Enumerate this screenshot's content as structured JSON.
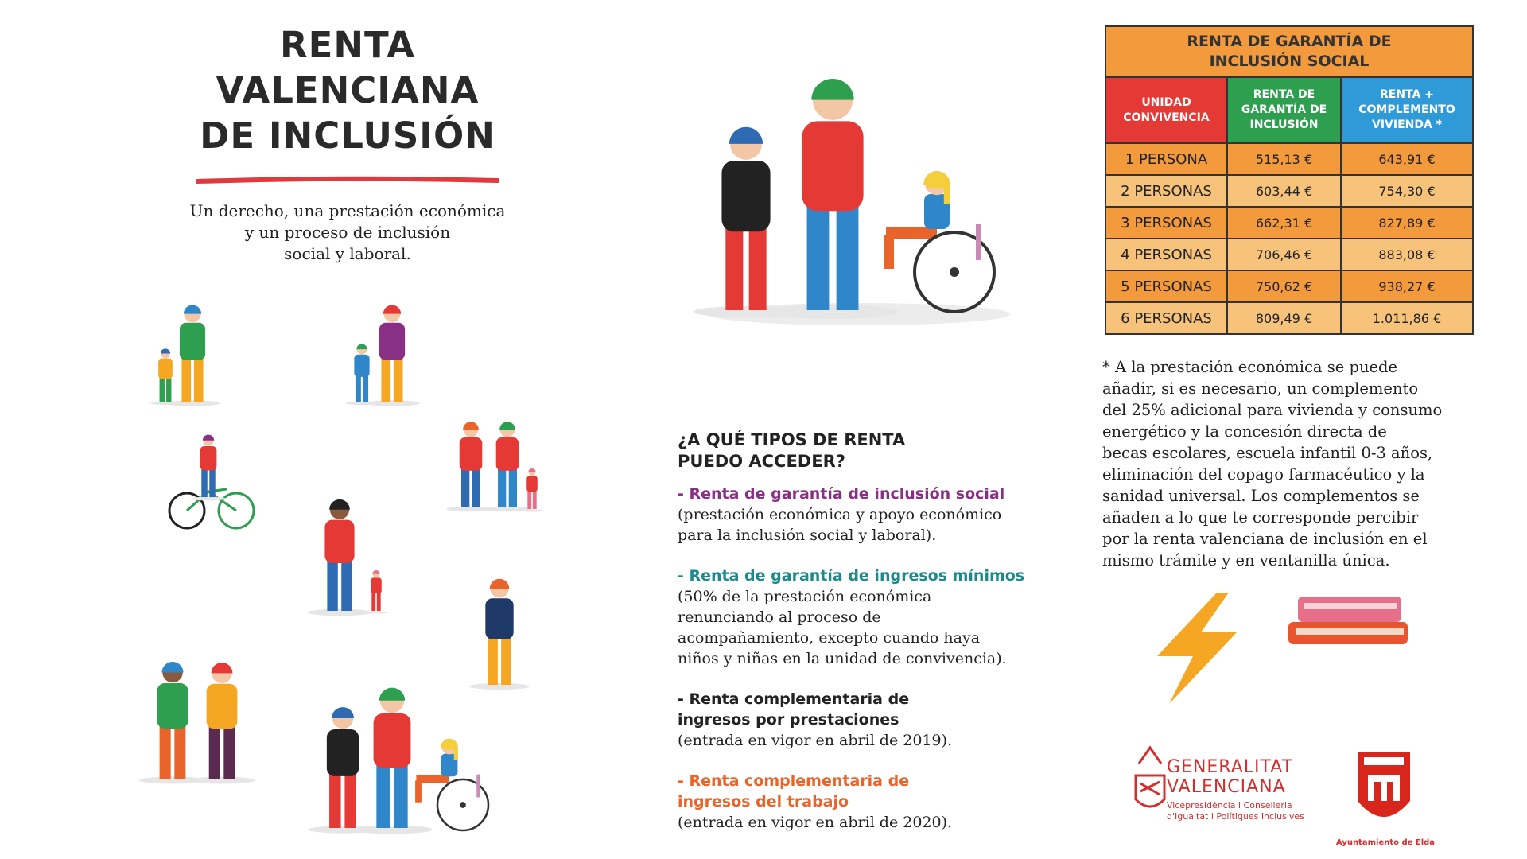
{
  "header": {
    "title_lines": [
      "RENTA",
      "VALENCIANA",
      "DE INCLUSIÓN"
    ],
    "subtitle_lines": [
      "Un derecho, una prestación económica",
      "y un proceso de inclusión",
      "social y laboral."
    ]
  },
  "types": {
    "heading_lines": [
      "¿A QUÉ TIPOS DE RENTA",
      "PUEDO ACCEDER?"
    ],
    "items": [
      {
        "title_lines": [
          "- Renta de garantía de inclusión social"
        ],
        "description_lines": [
          "(prestación económica y apoyo económico",
          "para la inclusión social y laboral)."
        ]
      },
      {
        "title_lines": [
          "- Renta de garantía de ingresos mínimos"
        ],
        "description_lines": [
          "(50% de la prestación económica",
          "renunciando al proceso de",
          "acompañamiento, excepto cuando haya",
          "niños y niñas en la unidad de convivencia)."
        ]
      },
      {
        "title_lines": [
          "- Renta complementaria de",
          "ingresos por prestaciones"
        ],
        "description_lines": [
          "(entrada en vigor en abril de 2019)."
        ]
      },
      {
        "title_lines": [
          "- Renta complementaria de",
          "ingresos del trabajo"
        ],
        "description_lines": [
          "(entrada en vigor en abril de 2020)."
        ]
      }
    ]
  },
  "table": {
    "title_lines": [
      "RENTA DE GARANTÍA DE",
      "INCLUSIÓN SOCIAL"
    ],
    "columns": [
      [
        "UNIDAD",
        "CONVIVENCIA"
      ],
      [
        "RENTA DE",
        "GARANTÍA DE",
        "INCLUSIÓN"
      ],
      [
        "RENTA +",
        "COMPLEMENTO",
        "VIVIENDA *"
      ]
    ],
    "rows": [
      [
        "1 PERSONA",
        "515,13 €",
        "643,91 €"
      ],
      [
        "2 PERSONAS",
        "603,44 €",
        "754,30 €"
      ],
      [
        "3 PERSONAS",
        "662,31 €",
        "827,89 €"
      ],
      [
        "4 PERSONAS",
        "706,46 €",
        "883,08 €"
      ],
      [
        "5 PERSONAS",
        "750,62 €",
        "938,27 €"
      ],
      [
        "6 PERSONAS",
        "809,49 €",
        "1.011,86 €"
      ]
    ]
  },
  "footnote_lines": [
    "* A la prestación económica se puede",
    "añadir,  si es necesario, un complemento",
    "del 25% adicional para vivienda y consumo",
    "energético y  la concesión directa de",
    "becas escolares, escuela infantil 0-3 años,",
    "eliminación del copago farmacéutico y la",
    "sanidad universal. Los complementos se",
    "añaden a lo que te corresponde percibir",
    "por la renta valenciana de inclusión en el",
    "mismo trámite y en ventanilla única."
  ],
  "logos": {
    "generalitat_lines": [
      "GENERALITAT",
      "VALENCIANA"
    ],
    "conselleria_lines": [
      "Vicepresidència i Conselleria",
      "d'Igualtat i Polítiques Inclusives"
    ],
    "ayuntamiento": "Ayuntamiento de Elda"
  }
}
